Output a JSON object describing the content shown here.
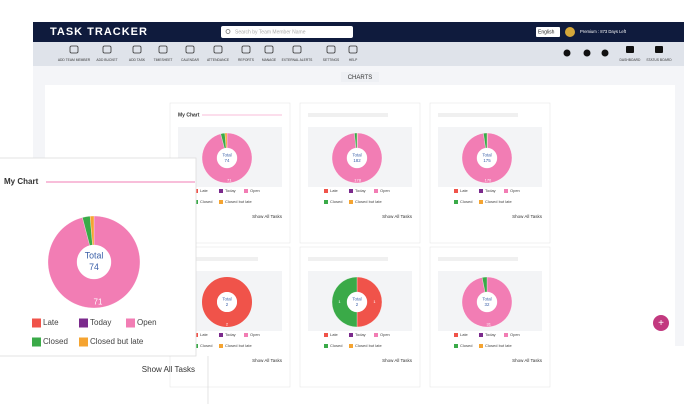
{
  "header": {
    "logo": "TASK TRACKER",
    "search_placeholder": "Search by Team Member Name",
    "language": "English",
    "plan": "Premium : 873 Days Left"
  },
  "toolbar": {
    "items": [
      "ADD TEAM MEMBER",
      "ADD BUCKET",
      "ADD TASK",
      "TIMESHEET",
      "CALENDAR",
      "ATTENDANCE",
      "REPORTS",
      "MANAGE",
      "EXTERNAL ALERTS",
      "SETTINGS",
      "HELP"
    ],
    "right_items": [
      "DASHBOARD",
      "STATUS BOARD"
    ]
  },
  "section_title": "CHARTS",
  "legend": {
    "names": [
      "Late",
      "Today",
      "Open",
      "Closed",
      "Closed but late"
    ],
    "colors": [
      "#f0534a",
      "#7b2a8c",
      "#f27db4",
      "#3aaa48",
      "#f5a431"
    ]
  },
  "total_label": "Total",
  "show_all": "Show All Tasks",
  "cards": [
    {
      "title": "My Chart",
      "total": 74,
      "values": [
        0,
        0,
        71,
        2,
        1
      ]
    },
    {
      "total": 182,
      "values": [
        1,
        0,
        178,
        3,
        0
      ]
    },
    {
      "total": 175,
      "values": [
        1,
        0,
        170,
        4,
        0
      ]
    },
    {
      "total": 2,
      "values": [
        2,
        0,
        0,
        0,
        0
      ]
    },
    {
      "total": 2,
      "values": [
        1,
        0,
        0,
        1,
        0
      ]
    },
    {
      "total": 32,
      "values": [
        0,
        0,
        31,
        1,
        0
      ]
    }
  ]
}
